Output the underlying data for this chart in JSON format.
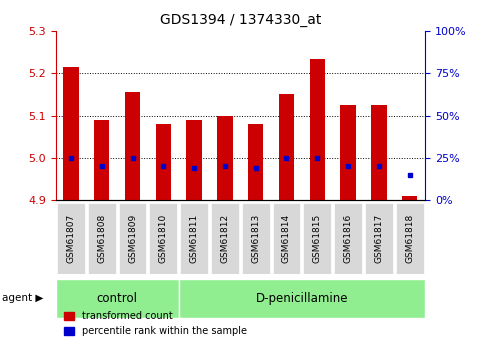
{
  "title": "GDS1394 / 1374330_at",
  "samples": [
    "GSM61807",
    "GSM61808",
    "GSM61809",
    "GSM61810",
    "GSM61811",
    "GSM61812",
    "GSM61813",
    "GSM61814",
    "GSM61815",
    "GSM61816",
    "GSM61817",
    "GSM61818"
  ],
  "red_top": [
    5.215,
    5.09,
    5.155,
    5.08,
    5.09,
    5.1,
    5.08,
    5.15,
    5.235,
    5.125,
    5.125,
    4.91
  ],
  "red_bottom": [
    4.9,
    4.9,
    4.9,
    4.9,
    4.9,
    4.9,
    4.9,
    4.9,
    4.9,
    4.9,
    4.9,
    4.9
  ],
  "blue_vals": [
    5.0,
    4.98,
    5.0,
    4.98,
    4.975,
    4.98,
    4.975,
    5.0,
    5.0,
    4.98,
    4.98,
    4.96
  ],
  "ylim_left": [
    4.9,
    5.3
  ],
  "ylim_right": [
    0,
    100
  ],
  "yticks_left": [
    4.9,
    5.0,
    5.1,
    5.2,
    5.3
  ],
  "yticks_right": [
    0,
    25,
    50,
    75,
    100
  ],
  "ytick_labels_right": [
    "0%",
    "25%",
    "50%",
    "75%",
    "100%"
  ],
  "hlines": [
    5.0,
    5.1,
    5.2
  ],
  "bar_color": "#CC0000",
  "dot_color": "#0000CC",
  "n_control": 4,
  "agent_label": "agent",
  "control_label": "control",
  "dp_label": "D-penicillamine",
  "legend_red": "transformed count",
  "legend_blue": "percentile rank within the sample",
  "bar_width": 0.5,
  "background_color": "#ffffff",
  "plot_bg": "#ffffff",
  "tick_bg": "#d8d8d8",
  "agent_box_color": "#90EE90",
  "yaxis_left_color": "#CC0000",
  "yaxis_right_color": "#0000CC",
  "fig_width": 4.83,
  "fig_height": 3.45,
  "fig_dpi": 100
}
